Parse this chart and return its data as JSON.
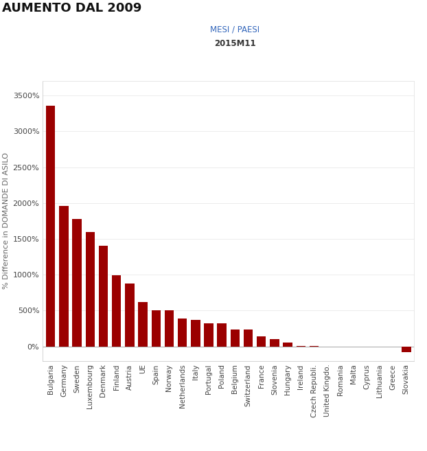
{
  "title": "AUMENTO DAL 2009",
  "filter_label": "MESI / PAESI",
  "filter_value": "2015M11",
  "ylabel": "% Difference in DOMANDE DI ASILO",
  "bar_color": "#9B0000",
  "background_color": "#ffffff",
  "categories": [
    "Bulgaria",
    "Germany",
    "Sweden",
    "Luxembourg",
    "Denmark",
    "Finland",
    "Austria",
    "UE",
    "Spain",
    "Norway",
    "Netherlands",
    "Italy",
    "Portugal",
    "Poland",
    "Belgium",
    "Switzerland",
    "France",
    "Slovenia",
    "Hungary",
    "Ireland",
    "Czech Republi.",
    "United Kingdo.",
    "Romania",
    "Malta",
    "Cyprus",
    "Lithuania",
    "Greece",
    "Slovakia"
  ],
  "values": [
    3360,
    1960,
    1780,
    1600,
    1400,
    990,
    880,
    615,
    505,
    505,
    390,
    375,
    325,
    320,
    240,
    240,
    140,
    105,
    50,
    10,
    5,
    2,
    1,
    0,
    -2,
    -3,
    -5,
    -80
  ],
  "title_fontsize": 13,
  "filter_label_fontsize": 8.5,
  "filter_value_fontsize": 8.5,
  "ylabel_fontsize": 8,
  "ytick_fontsize": 8,
  "xtick_fontsize": 7.5,
  "ylim": [
    -200,
    3700
  ],
  "ytick_interval": 500,
  "bar_width": 0.7
}
